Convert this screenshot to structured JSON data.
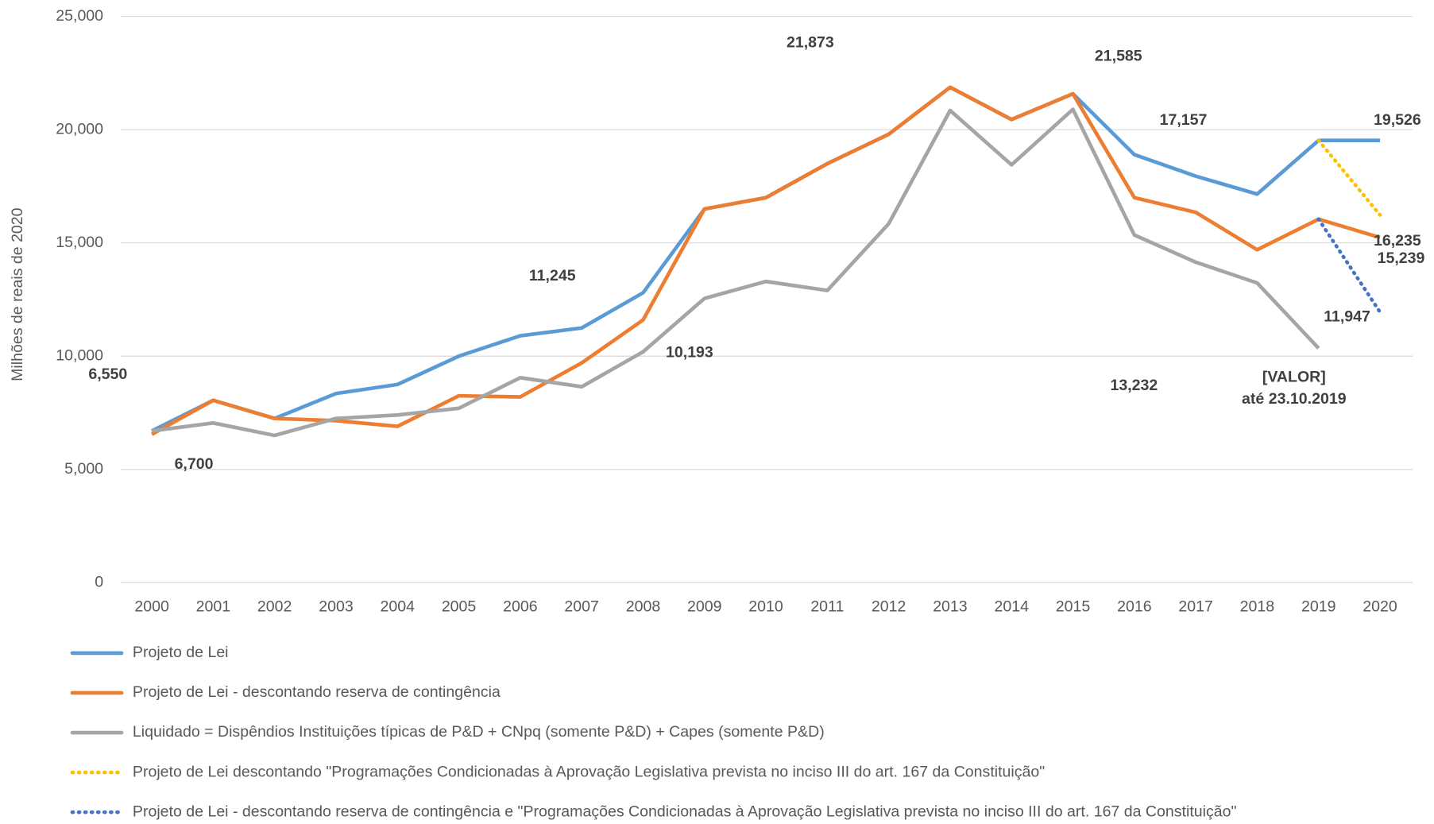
{
  "chart_data": {
    "type": "line",
    "y_label": "Milhões de reais de 2020",
    "categories": [
      "2000",
      "2001",
      "2002",
      "2003",
      "2004",
      "2005",
      "2006",
      "2007",
      "2008",
      "2009",
      "2010",
      "2011",
      "2012",
      "2013",
      "2014",
      "2015",
      "2016",
      "2017",
      "2018",
      "2019",
      "2020"
    ],
    "ylim": [
      0,
      25000
    ],
    "yticks": [
      {
        "value": 0,
        "label": "0"
      },
      {
        "value": 5000,
        "label": "5,000"
      },
      {
        "value": 10000,
        "label": "10,000"
      },
      {
        "value": 15000,
        "label": "15,000"
      },
      {
        "value": 20000,
        "label": "20,000"
      },
      {
        "value": 25000,
        "label": "25,000"
      }
    ],
    "grid": true,
    "legend": "bottom",
    "series": [
      {
        "name": "Projeto de Lei",
        "color": "#5b9bd5",
        "style": "solid",
        "values": [
          6700,
          8050,
          7250,
          8350,
          8750,
          10000,
          10900,
          11245,
          12800,
          16500,
          17000,
          18500,
          19800,
          21873,
          20450,
          21585,
          18900,
          17950,
          17157,
          19526,
          19526
        ],
        "value_labels": [
          "6,700",
          null,
          null,
          null,
          null,
          null,
          null,
          "11,245",
          null,
          null,
          null,
          null,
          null,
          "21,873",
          null,
          "21,585",
          null,
          null,
          "17,157",
          null,
          "19,526"
        ]
      },
      {
        "name": "Projeto de Lei - descontando reserva de contingência",
        "color": "#ed7d31",
        "style": "solid",
        "values": [
          6550,
          8050,
          7250,
          7150,
          6900,
          8250,
          8200,
          9700,
          11600,
          16500,
          17000,
          18500,
          19800,
          21873,
          20450,
          21585,
          17000,
          16350,
          14700,
          16050,
          15239
        ],
        "value_labels": [
          "6,550",
          null,
          null,
          null,
          null,
          null,
          null,
          null,
          null,
          null,
          null,
          null,
          null,
          null,
          null,
          null,
          null,
          null,
          null,
          null,
          "15,239"
        ]
      },
      {
        "name": "Liquidado = Dispêndios Instituições típicas de P&D + CNpq (somente P&D) + Capes (somente P&D)",
        "color": "#a5a5a5",
        "style": "solid",
        "values": [
          6700,
          7050,
          6500,
          7250,
          7400,
          7700,
          9050,
          8650,
          10193,
          12550,
          13300,
          12900,
          15850,
          20850,
          18450,
          20900,
          15350,
          14150,
          13232,
          10350,
          null
        ],
        "value_labels": [
          null,
          null,
          null,
          null,
          null,
          null,
          null,
          null,
          "10,193",
          null,
          null,
          null,
          null,
          null,
          null,
          null,
          null,
          null,
          "13,232",
          null,
          null
        ]
      },
      {
        "name": "Projeto de Lei descontando  \"Programações Condicionadas à Aprovação Legislativa prevista no inciso III do art. 167 da Constituição\"",
        "color": "#ffc000",
        "style": "dotted",
        "values": [
          null,
          null,
          null,
          null,
          null,
          null,
          null,
          null,
          null,
          null,
          null,
          null,
          null,
          null,
          null,
          null,
          null,
          null,
          null,
          19526,
          16235
        ],
        "value_labels": [
          null,
          null,
          null,
          null,
          null,
          null,
          null,
          null,
          null,
          null,
          null,
          null,
          null,
          null,
          null,
          null,
          null,
          null,
          null,
          null,
          "16,235"
        ]
      },
      {
        "name": "Projeto de Lei - descontando reserva de contingência e  \"Programações Condicionadas à Aprovação Legislativa prevista no inciso III do art. 167 da Constituição\"",
        "color": "#4472c4",
        "style": "dotted",
        "values": [
          null,
          null,
          null,
          null,
          null,
          null,
          null,
          null,
          null,
          null,
          null,
          null,
          null,
          null,
          null,
          null,
          null,
          null,
          null,
          16050,
          11947
        ],
        "value_labels": [
          null,
          null,
          null,
          null,
          null,
          null,
          null,
          null,
          null,
          null,
          null,
          null,
          null,
          null,
          null,
          null,
          null,
          null,
          null,
          null,
          "11,947"
        ]
      }
    ],
    "annotation": [
      "[VALOR]",
      "até 23.10.2019"
    ]
  }
}
